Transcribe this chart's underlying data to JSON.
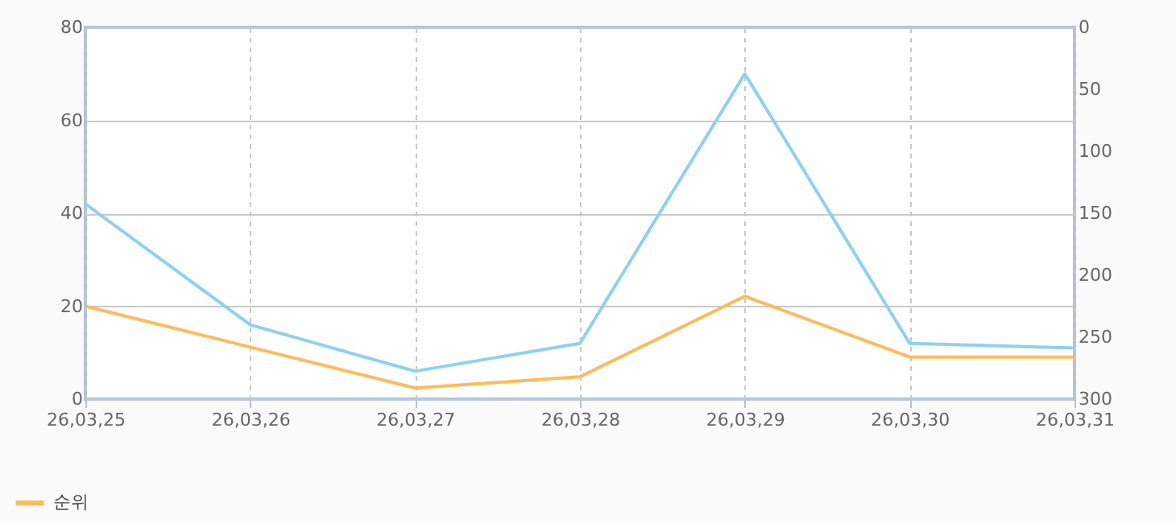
{
  "chart_data": {
    "type": "line",
    "categories": [
      "26,03,25",
      "26,03,26",
      "26,03,27",
      "26,03,28",
      "26,03,29",
      "26,03,30",
      "26,03,31"
    ],
    "series": [
      {
        "color": "#8fd0f0",
        "values": [
          42,
          16,
          6,
          12,
          70,
          12,
          11
        ]
      },
      {
        "name": "순위",
        "color": "#fdbb5a",
        "axis": "y2",
        "values": [
          225,
          258,
          291,
          282,
          217,
          266,
          266
        ]
      }
    ],
    "ylim": [
      0,
      80
    ],
    "yticks": [
      0,
      20,
      40,
      60,
      80
    ],
    "y2lim": [
      300,
      0
    ],
    "y2ticks": [
      0,
      50,
      100,
      150,
      200,
      250,
      300
    ],
    "grid": true,
    "legend": "bottom left"
  }
}
